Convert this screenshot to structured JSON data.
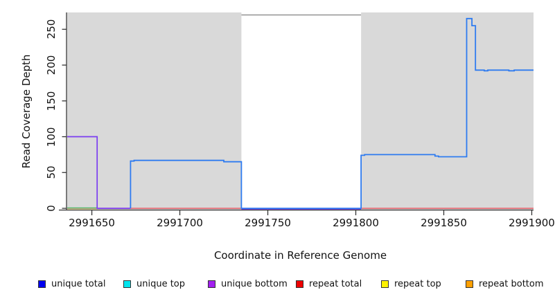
{
  "figure": {
    "x_axis_title": "Coordinate in Reference Genome",
    "y_axis_title": "Read Coverage Depth"
  },
  "chart_data": {
    "type": "line",
    "step": true,
    "title": "",
    "xlabel": "Coordinate in Reference Genome",
    "ylabel": "Read Coverage Depth",
    "xlim": [
      2991636,
      2991901
    ],
    "ylim": [
      0,
      275
    ],
    "x_ticks": [
      2991650,
      2991700,
      2991750,
      2991800,
      2991850,
      2991900
    ],
    "y_ticks": [
      0,
      50,
      100,
      150,
      200,
      250
    ],
    "grid": false,
    "plot_bg": "#d9d9d9",
    "page_bg": "#ffffff",
    "axis_color": "#333333",
    "regions": [
      {
        "name": "no-data-white-region",
        "x0": 2991735,
        "x1": 2991803,
        "color": "#ffffff"
      }
    ],
    "overlays": [
      {
        "name": "max-depth-gray-line",
        "color": "#999999",
        "width": 1.6,
        "points": [
          [
            2991735,
            270
          ],
          [
            2991803,
            270
          ]
        ]
      }
    ],
    "series": [
      {
        "name": "repeat total",
        "color": "#e8424f",
        "width": 1.3,
        "points": [
          [
            2991636,
            0
          ],
          [
            2991901,
            0
          ]
        ]
      },
      {
        "name": "repeat top",
        "color": "#ece7ad",
        "width": 1.4,
        "dy": 1.5,
        "points": [
          [
            2991636,
            0
          ],
          [
            2991653,
            0
          ]
        ]
      },
      {
        "name": "unique top",
        "color": "#4db563",
        "width": 1.4,
        "dy": -0.5,
        "points": [
          [
            2991636,
            0
          ],
          [
            2991653,
            0
          ]
        ]
      },
      {
        "name": "unique bottom",
        "color": "#7a3cf0",
        "width": 1.7,
        "points": [
          [
            2991636,
            100
          ],
          [
            2991653,
            100
          ],
          [
            2991653,
            0
          ],
          [
            2991672,
            0
          ]
        ]
      },
      {
        "name": "unique bottom gap floor",
        "color": "#7a3cf0",
        "width": 1.7,
        "dy": 1,
        "points": [
          [
            2991735,
            0
          ],
          [
            2991803,
            0
          ]
        ]
      },
      {
        "name": "unique total",
        "color": "#2e7bf0",
        "width": 1.8,
        "points": [
          [
            2991672,
            0
          ],
          [
            2991672,
            66
          ],
          [
            2991674,
            66
          ],
          [
            2991674,
            67
          ],
          [
            2991725,
            67
          ],
          [
            2991725,
            65
          ],
          [
            2991735,
            65
          ],
          [
            2991735,
            0
          ],
          [
            2991803,
            0
          ],
          [
            2991803,
            74
          ],
          [
            2991805,
            74
          ],
          [
            2991805,
            75
          ],
          [
            2991845,
            75
          ],
          [
            2991845,
            73
          ],
          [
            2991847,
            73
          ],
          [
            2991847,
            72
          ],
          [
            2991863,
            72
          ],
          [
            2991863,
            265
          ],
          [
            2991866,
            265
          ],
          [
            2991866,
            255
          ],
          [
            2991868,
            255
          ],
          [
            2991868,
            193
          ],
          [
            2991873,
            193
          ],
          [
            2991873,
            192
          ],
          [
            2991875,
            192
          ],
          [
            2991875,
            193
          ],
          [
            2991887,
            193
          ],
          [
            2991887,
            192
          ],
          [
            2991890,
            192
          ],
          [
            2991890,
            193
          ],
          [
            2991901,
            193
          ]
        ]
      }
    ],
    "legend": [
      {
        "label": "unique total",
        "color": "#0000f0"
      },
      {
        "label": "unique top",
        "color": "#00e5ee"
      },
      {
        "label": "unique bottom",
        "color": "#a21ff0"
      },
      {
        "label": "repeat total",
        "color": "#ee0000"
      },
      {
        "label": "repeat top",
        "color": "#fff200"
      },
      {
        "label": "repeat bottom",
        "color": "#ffa000"
      }
    ],
    "legend_position": "bottom"
  }
}
